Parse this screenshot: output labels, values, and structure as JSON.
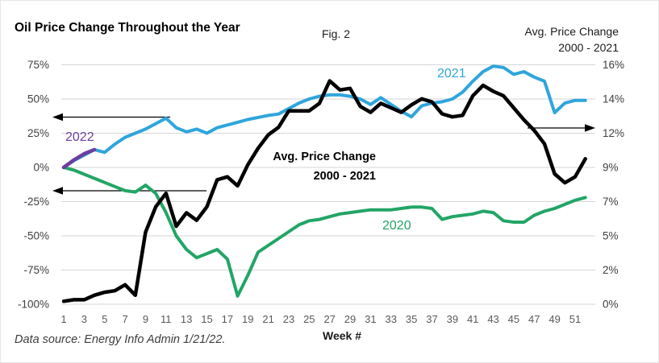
{
  "header": {
    "title": "Oil Price Change Throughout the Year",
    "fig_label": "Fig. 2",
    "right_axis_title_line1": "Avg. Price Change",
    "right_axis_title_line2": "2000 - 2021"
  },
  "annotations": {
    "series_label_2022": "2022",
    "series_label_2021": "2021",
    "series_label_2020": "2020",
    "avg_label_line1": "Avg. Price Change",
    "avg_label_line2": "2000 - 2021"
  },
  "footer": {
    "source_note": "Data source: Energy Info Admin 1/21/22.",
    "x_axis_title": "Week #"
  },
  "colors": {
    "blue_2021": "#2FA5DC",
    "green_2020": "#22A566",
    "purple_2022": "#6B3FA0",
    "black_avg": "#000000",
    "gridline": "#D6D6D6",
    "tick_text": "#404040",
    "x_tick_text": "#595959"
  },
  "chart_data": {
    "type": "line",
    "title": "Oil Price Change Throughout the Year",
    "xlabel": "Week #",
    "x_ticks": [
      1,
      3,
      5,
      7,
      9,
      11,
      13,
      15,
      17,
      19,
      21,
      23,
      25,
      27,
      29,
      31,
      33,
      35,
      37,
      39,
      41,
      43,
      45,
      47,
      49,
      51
    ],
    "x_range": [
      1,
      52
    ],
    "grid": "horizontal-only",
    "left_axis": {
      "tick_labels": [
        "75%",
        "50%",
        "25%",
        "0%",
        "-25%",
        "-50%",
        "-75%",
        "-100%"
      ],
      "tick_values": [
        75,
        50,
        25,
        0,
        -25,
        -50,
        -75,
        -100
      ],
      "range": [
        -100,
        75
      ]
    },
    "right_axis": {
      "title": "Avg. Price Change 2000 - 2021",
      "tick_labels": [
        "16%",
        "14%",
        "12%",
        "9%",
        "7%",
        "5%",
        "2%",
        "0%"
      ],
      "range": [
        0,
        16
      ]
    },
    "series": [
      {
        "name": "2020",
        "axis": "left",
        "color": "#22A566",
        "width": 4,
        "start_week": 1,
        "values": [
          0,
          -2,
          -5,
          -8,
          -11,
          -14,
          -17,
          -18,
          -13,
          -19,
          -33,
          -50,
          -60,
          -66,
          -63,
          -60,
          -67,
          -94,
          -79,
          -62,
          -57,
          -52,
          -47,
          -42,
          -39,
          -38,
          -36,
          -34,
          -33,
          -32,
          -31,
          -31,
          -31,
          -30,
          -29,
          -29,
          -30,
          -38,
          -36,
          -35,
          -34,
          -32,
          -33,
          -39,
          -40,
          -40,
          -35,
          -32,
          -30,
          -27,
          -24,
          -22
        ]
      },
      {
        "name": "2021",
        "axis": "left",
        "color": "#2FA5DC",
        "width": 4,
        "start_week": 1,
        "values": [
          0,
          5,
          9,
          13,
          11,
          17,
          22,
          25,
          28,
          32,
          36,
          29,
          26,
          28,
          25,
          29,
          31,
          33,
          35,
          36.5,
          38,
          39,
          43,
          47,
          50,
          52,
          53,
          53,
          52,
          50,
          46,
          51,
          46,
          41,
          37,
          45,
          47,
          48,
          50,
          55,
          63,
          70,
          74,
          73,
          68,
          70,
          66,
          63,
          40,
          47,
          49,
          49
        ]
      },
      {
        "name": "2022",
        "axis": "left",
        "color": "#6B3FA0",
        "width": 4.5,
        "start_week": 1,
        "values": [
          0,
          5.5,
          10,
          13
        ]
      },
      {
        "name": "Avg. Price Change 2000 - 2021",
        "axis": "right",
        "color": "#000000",
        "width": 4.5,
        "start_week": 1,
        "values": [
          0.2,
          0.3,
          0.3,
          0.6,
          0.8,
          0.9,
          1.3,
          0.6,
          4.8,
          6.5,
          7.4,
          5.2,
          6.1,
          5.6,
          6.5,
          8.3,
          8.5,
          7.9,
          9.3,
          10.4,
          11.3,
          11.8,
          12.9,
          12.9,
          12.9,
          13.4,
          14.9,
          14.3,
          14.4,
          13.2,
          12.8,
          13.4,
          13.1,
          12.8,
          13.3,
          13.7,
          13.5,
          12.7,
          12.5,
          12.6,
          13.9,
          14.6,
          14.2,
          13.9,
          13.1,
          12.3,
          11.6,
          10.7,
          8.7,
          8.1,
          8.5,
          9.7
        ]
      }
    ],
    "axis_indicator_arrows": [
      {
        "points_to": "left-axis",
        "y_left_value": 36.5,
        "meaning": "2021/2022 lines read on left axis"
      },
      {
        "points_to": "left-axis",
        "y_left_value": -17,
        "meaning": "2020 line reads on left axis"
      },
      {
        "points_to": "right-axis",
        "y_left_value": 28.8,
        "meaning": "black average line reads on right axis"
      }
    ]
  }
}
